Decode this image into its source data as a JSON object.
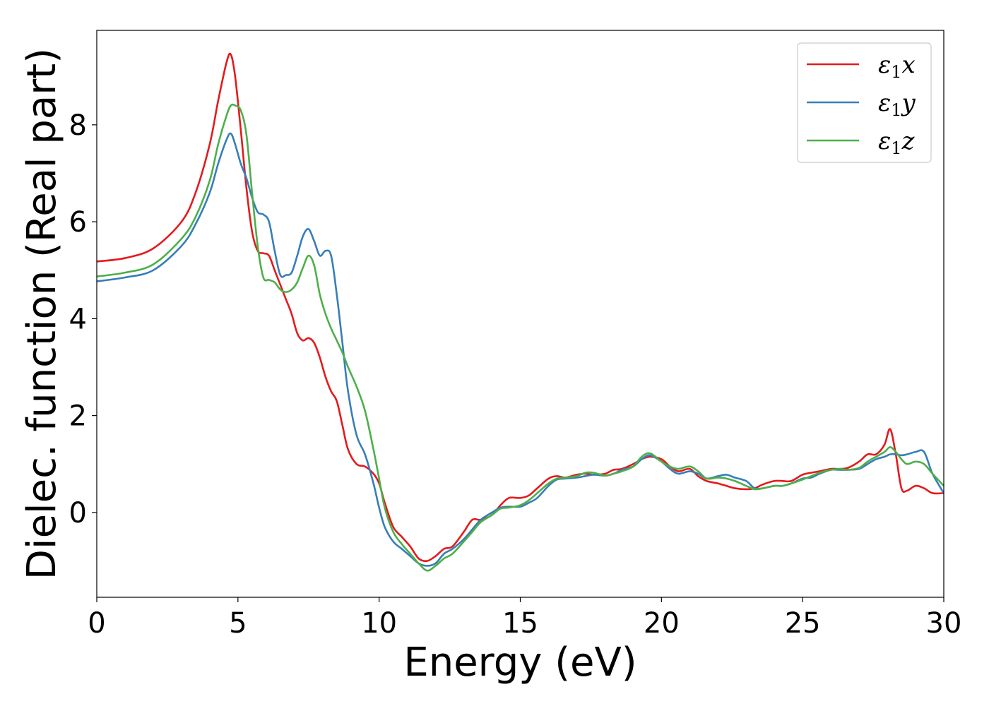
{
  "chart_data": {
    "type": "line",
    "xlabel": "Energy (eV)",
    "ylabel": "Dielec. function (Real part)",
    "xlim": [
      0,
      30
    ],
    "ylim": [
      -1.75,
      9.95
    ],
    "xticks": [
      0,
      5,
      10,
      15,
      20,
      25,
      30
    ],
    "xtick_labels": [
      "0",
      "5",
      "10",
      "15",
      "20",
      "25",
      "30"
    ],
    "yticks": [
      0,
      2,
      4,
      6,
      8
    ],
    "ytick_labels": [
      "0",
      "2",
      "4",
      "6",
      "8"
    ],
    "grid": false,
    "legend_position": "top-right",
    "series": [
      {
        "name": "ε1x",
        "legend_main": "ε",
        "legend_sub": "1",
        "legend_var": "x",
        "color": "#e41a1c",
        "x": [
          0,
          1,
          2,
          3,
          3.5,
          4,
          4.3,
          4.6,
          4.75,
          4.9,
          5.1,
          5.3,
          5.5,
          5.7,
          5.9,
          6.1,
          6.3,
          6.5,
          6.7,
          6.9,
          7.1,
          7.3,
          7.5,
          7.7,
          7.9,
          8.1,
          8.3,
          8.5,
          8.7,
          8.9,
          9.2,
          9.5,
          9.8,
          10,
          10.2,
          10.5,
          10.8,
          11.1,
          11.4,
          11.7,
          12,
          12.3,
          12.6,
          13,
          13.3,
          13.6,
          14,
          14.3,
          14.6,
          15,
          15.3,
          15.6,
          16,
          16.3,
          16.6,
          17,
          17.3,
          17.6,
          18,
          18.3,
          18.6,
          19,
          19.3,
          19.6,
          20,
          20.3,
          20.6,
          21,
          21.3,
          21.6,
          22,
          22.3,
          22.6,
          23,
          23.3,
          23.6,
          24,
          24.3,
          24.6,
          25,
          25.3,
          25.6,
          26,
          26.3,
          26.6,
          27,
          27.3,
          27.6,
          27.9,
          28.1,
          28.3,
          28.5,
          28.7,
          29,
          29.3,
          29.6,
          30
        ],
        "y": [
          5.18,
          5.25,
          5.45,
          6.0,
          6.6,
          7.6,
          8.5,
          9.3,
          9.45,
          9.0,
          7.9,
          6.7,
          5.8,
          5.4,
          5.35,
          5.3,
          5.0,
          4.7,
          4.4,
          4.1,
          3.7,
          3.55,
          3.6,
          3.5,
          3.2,
          2.8,
          2.5,
          2.3,
          1.8,
          1.3,
          1.0,
          0.95,
          0.8,
          0.6,
          0.2,
          -0.3,
          -0.5,
          -0.7,
          -0.95,
          -1.0,
          -0.9,
          -0.75,
          -0.7,
          -0.4,
          -0.15,
          -0.15,
          -0.05,
          0.15,
          0.3,
          0.3,
          0.35,
          0.5,
          0.7,
          0.75,
          0.72,
          0.78,
          0.8,
          0.78,
          0.8,
          0.88,
          0.9,
          1.0,
          1.1,
          1.15,
          1.1,
          0.95,
          0.85,
          0.9,
          0.75,
          0.65,
          0.6,
          0.55,
          0.5,
          0.48,
          0.5,
          0.58,
          0.65,
          0.65,
          0.65,
          0.78,
          0.82,
          0.85,
          0.9,
          0.9,
          0.92,
          1.05,
          1.2,
          1.2,
          1.4,
          1.72,
          1.2,
          0.5,
          0.45,
          0.55,
          0.5,
          0.4,
          0.4
        ]
      },
      {
        "name": "ε1y",
        "legend_main": "ε",
        "legend_sub": "1",
        "legend_var": "y",
        "color": "#377eb8",
        "x": [
          0,
          1,
          2,
          3,
          3.5,
          4,
          4.3,
          4.6,
          4.75,
          4.9,
          5.1,
          5.3,
          5.5,
          5.7,
          5.9,
          6.1,
          6.3,
          6.5,
          6.7,
          6.9,
          7.1,
          7.3,
          7.5,
          7.7,
          7.9,
          8.1,
          8.3,
          8.5,
          8.7,
          8.9,
          9.2,
          9.5,
          9.8,
          10,
          10.2,
          10.5,
          10.8,
          11.1,
          11.4,
          11.7,
          12,
          12.3,
          12.6,
          13,
          13.3,
          13.6,
          14,
          14.3,
          14.6,
          15,
          15.3,
          15.6,
          16,
          16.3,
          16.6,
          17,
          17.3,
          17.6,
          18,
          18.3,
          18.6,
          19,
          19.3,
          19.6,
          20,
          20.3,
          20.6,
          21,
          21.3,
          21.6,
          22,
          22.3,
          22.6,
          23,
          23.3,
          23.6,
          24,
          24.3,
          24.6,
          25,
          25.3,
          25.6,
          26,
          26.3,
          26.6,
          27,
          27.3,
          27.6,
          27.9,
          28.1,
          28.3,
          28.5,
          28.7,
          29,
          29.3,
          29.6,
          30
        ],
        "y": [
          4.77,
          4.85,
          5.0,
          5.5,
          5.95,
          6.6,
          7.2,
          7.7,
          7.82,
          7.6,
          7.2,
          6.9,
          6.5,
          6.2,
          6.15,
          6.0,
          5.4,
          4.9,
          4.9,
          4.95,
          5.3,
          5.7,
          5.85,
          5.6,
          5.3,
          5.4,
          5.3,
          4.5,
          3.5,
          2.5,
          1.6,
          1.2,
          0.6,
          0.1,
          -0.3,
          -0.6,
          -0.75,
          -0.9,
          -1.05,
          -1.1,
          -1.05,
          -0.85,
          -0.75,
          -0.55,
          -0.35,
          -0.15,
          0.0,
          0.1,
          0.12,
          0.12,
          0.2,
          0.3,
          0.55,
          0.68,
          0.7,
          0.72,
          0.75,
          0.78,
          0.76,
          0.8,
          0.88,
          0.95,
          1.1,
          1.18,
          1.05,
          0.9,
          0.8,
          0.85,
          0.8,
          0.7,
          0.75,
          0.78,
          0.72,
          0.65,
          0.5,
          0.5,
          0.55,
          0.55,
          0.6,
          0.7,
          0.72,
          0.8,
          0.88,
          0.88,
          0.88,
          0.9,
          1.0,
          1.1,
          1.15,
          1.2,
          1.2,
          1.18,
          1.2,
          1.25,
          1.25,
          0.8,
          0.4
        ]
      },
      {
        "name": "ε1z",
        "legend_main": "ε",
        "legend_sub": "1",
        "legend_var": "z",
        "color": "#4daf4a",
        "x": [
          0,
          1,
          2,
          3,
          3.5,
          4,
          4.3,
          4.6,
          4.75,
          4.9,
          5.1,
          5.3,
          5.5,
          5.7,
          5.9,
          6.1,
          6.3,
          6.5,
          6.7,
          6.9,
          7.1,
          7.3,
          7.5,
          7.7,
          7.9,
          8.1,
          8.3,
          8.5,
          8.7,
          8.9,
          9.2,
          9.5,
          9.8,
          10,
          10.2,
          10.5,
          10.8,
          11.1,
          11.4,
          11.7,
          12,
          12.3,
          12.6,
          13,
          13.3,
          13.6,
          14,
          14.3,
          14.6,
          15,
          15.3,
          15.6,
          16,
          16.3,
          16.6,
          17,
          17.3,
          17.6,
          18,
          18.3,
          18.6,
          19,
          19.3,
          19.6,
          20,
          20.3,
          20.6,
          21,
          21.3,
          21.6,
          22,
          22.3,
          22.6,
          23,
          23.3,
          23.6,
          24,
          24.3,
          24.6,
          25,
          25.3,
          25.6,
          26,
          26.3,
          26.6,
          27,
          27.3,
          27.6,
          27.9,
          28.1,
          28.3,
          28.5,
          28.7,
          29,
          29.3,
          29.6,
          30
        ],
        "y": [
          4.87,
          4.95,
          5.12,
          5.65,
          6.1,
          6.85,
          7.6,
          8.2,
          8.4,
          8.4,
          8.3,
          7.8,
          6.6,
          5.5,
          4.85,
          4.8,
          4.75,
          4.6,
          4.55,
          4.6,
          4.75,
          5.05,
          5.3,
          5.1,
          4.5,
          4.1,
          3.8,
          3.55,
          3.3,
          3.0,
          2.6,
          2.1,
          1.3,
          0.7,
          0.1,
          -0.4,
          -0.65,
          -0.85,
          -1.05,
          -1.2,
          -1.1,
          -0.95,
          -0.85,
          -0.6,
          -0.4,
          -0.2,
          -0.05,
          0.08,
          0.1,
          0.15,
          0.25,
          0.4,
          0.6,
          0.7,
          0.72,
          0.75,
          0.82,
          0.82,
          0.76,
          0.8,
          0.85,
          0.95,
          1.15,
          1.22,
          1.05,
          0.95,
          0.9,
          0.95,
          0.85,
          0.7,
          0.72,
          0.7,
          0.65,
          0.55,
          0.48,
          0.5,
          0.55,
          0.55,
          0.6,
          0.68,
          0.75,
          0.82,
          0.88,
          0.9,
          0.88,
          0.92,
          1.05,
          1.15,
          1.25,
          1.35,
          1.25,
          1.1,
          1.0,
          1.05,
          1.0,
          0.8,
          0.55
        ]
      }
    ]
  }
}
